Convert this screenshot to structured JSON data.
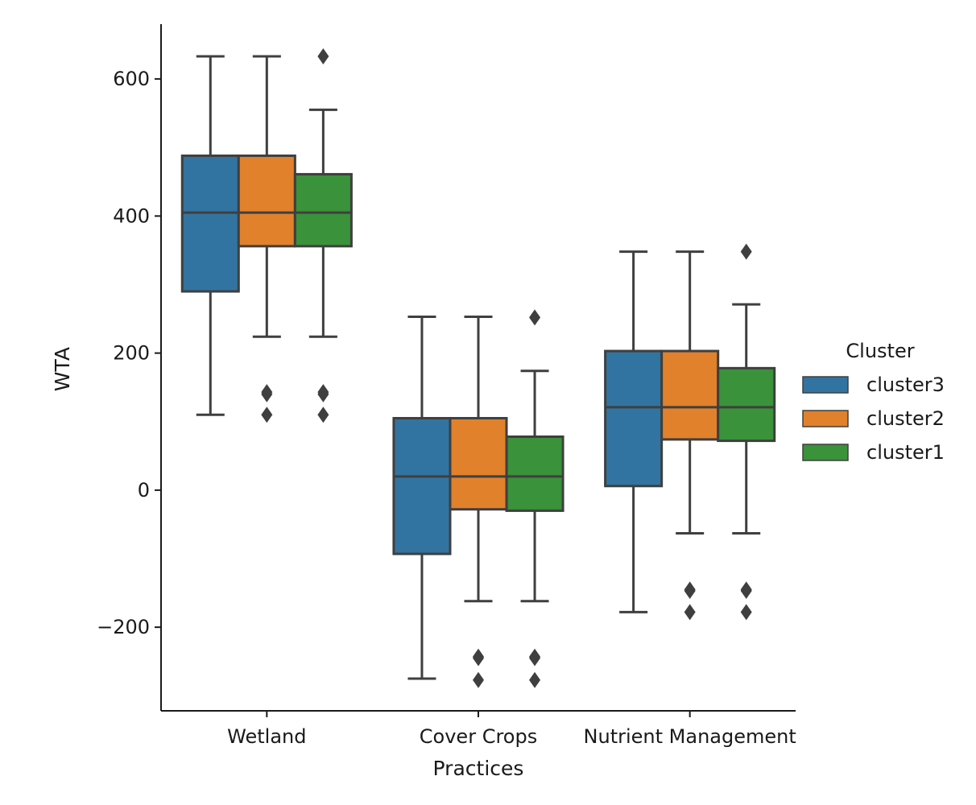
{
  "chart_data": {
    "type": "box",
    "xlabel": "Practices",
    "ylabel": "WTA",
    "categories": [
      "Wetland",
      "Cover Crops",
      "Nutrient Management"
    ],
    "yticks": [
      -200,
      0,
      200,
      400,
      600
    ],
    "ytick_labels": [
      "−200",
      "0",
      "200",
      "400",
      "600"
    ],
    "ylim": [
      -322,
      680
    ],
    "legend": {
      "title": "Cluster",
      "position": "center-right"
    },
    "series": [
      {
        "name": "cluster3",
        "color": "#3274a1",
        "boxes": [
          {
            "whisker_low": 110,
            "q1": 290,
            "median": 405,
            "q3": 488,
            "whisker_high": 633,
            "outliers": []
          },
          {
            "whisker_low": -275,
            "q1": -93,
            "median": 20,
            "q3": 105,
            "whisker_high": 253,
            "outliers": []
          },
          {
            "whisker_low": -178,
            "q1": 6,
            "median": 121,
            "q3": 203,
            "whisker_high": 348,
            "outliers": []
          }
        ]
      },
      {
        "name": "cluster2",
        "color": "#e1812c",
        "boxes": [
          {
            "whisker_low": 224,
            "q1": 356,
            "median": 405,
            "q3": 488,
            "whisker_high": 633,
            "outliers": [
              110,
              140,
              143
            ]
          },
          {
            "whisker_low": -162,
            "q1": -28,
            "median": 20,
            "q3": 105,
            "whisker_high": 253,
            "outliers": [
              -243,
              -245,
              -277
            ]
          },
          {
            "whisker_low": -63,
            "q1": 74,
            "median": 121,
            "q3": 203,
            "whisker_high": 348,
            "outliers": [
              -145,
              -147,
              -178
            ]
          }
        ]
      },
      {
        "name": "cluster1",
        "color": "#3a923a",
        "boxes": [
          {
            "whisker_low": 224,
            "q1": 356,
            "median": 405,
            "q3": 461,
            "whisker_high": 555,
            "outliers": [
              110,
              140,
              143,
              633
            ]
          },
          {
            "whisker_low": -162,
            "q1": -30,
            "median": 20,
            "q3": 78,
            "whisker_high": 174,
            "outliers": [
              -243,
              -245,
              -277,
              252
            ]
          },
          {
            "whisker_low": -63,
            "q1": 72,
            "median": 121,
            "q3": 178,
            "whisker_high": 271,
            "outliers": [
              -145,
              -147,
              -178,
              348
            ]
          }
        ]
      }
    ]
  }
}
